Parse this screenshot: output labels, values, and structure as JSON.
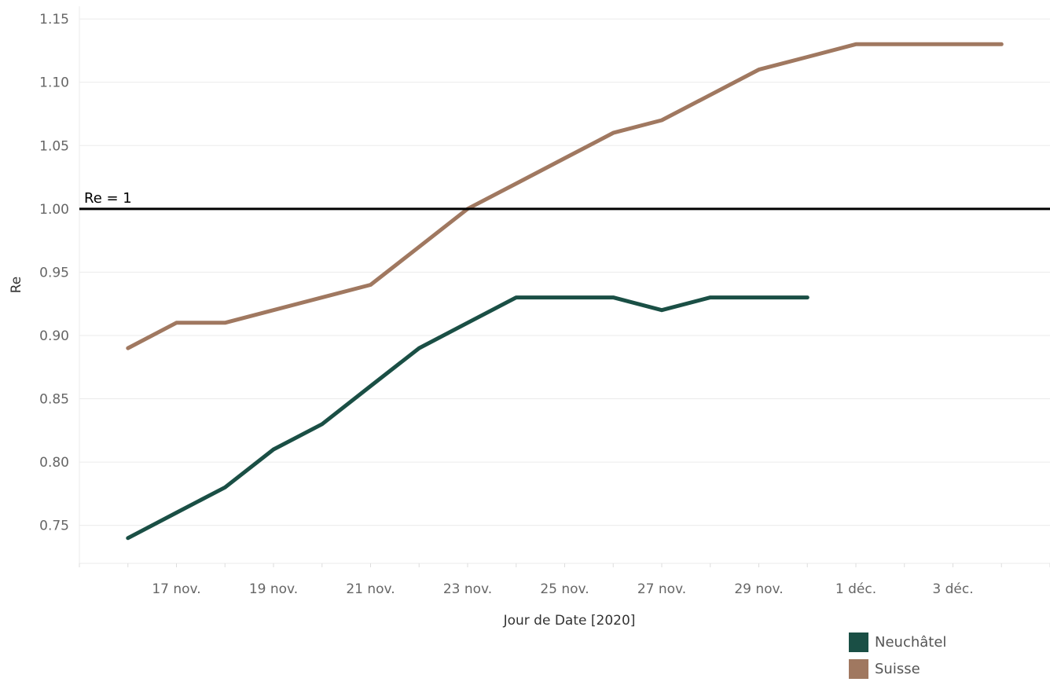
{
  "chart_data": {
    "type": "line",
    "xlabel": "Jour de Date [2020]",
    "ylabel": "Re",
    "ylim": [
      0.72,
      1.16
    ],
    "yticks": [
      0.75,
      0.8,
      0.85,
      0.9,
      0.95,
      1.0,
      1.05,
      1.1,
      1.15
    ],
    "ytick_labels": [
      "0.75",
      "0.80",
      "0.85",
      "0.90",
      "0.95",
      "1.00",
      "1.05",
      "1.10",
      "1.15"
    ],
    "x_range": [
      "2020-11-15",
      "2020-12-05"
    ],
    "xticks": [
      {
        "date": "2020-11-17",
        "label": "17 nov."
      },
      {
        "date": "2020-11-19",
        "label": "19 nov."
      },
      {
        "date": "2020-11-21",
        "label": "21 nov."
      },
      {
        "date": "2020-11-23",
        "label": "23 nov."
      },
      {
        "date": "2020-11-25",
        "label": "25 nov."
      },
      {
        "date": "2020-11-27",
        "label": "27 nov."
      },
      {
        "date": "2020-11-29",
        "label": "29 nov."
      },
      {
        "date": "2020-12-01",
        "label": "1 déc."
      },
      {
        "date": "2020-12-03",
        "label": "3 déc."
      }
    ],
    "reference_line": {
      "y": 1.0,
      "label": "Re = 1",
      "color": "#000000"
    },
    "legend_position": "bottom-right",
    "series": [
      {
        "name": "Neuchâtel",
        "color": "#1a4f45",
        "points": [
          {
            "date": "2020-11-16",
            "y": 0.74
          },
          {
            "date": "2020-11-17",
            "y": 0.76
          },
          {
            "date": "2020-11-18",
            "y": 0.78
          },
          {
            "date": "2020-11-19",
            "y": 0.81
          },
          {
            "date": "2020-11-20",
            "y": 0.83
          },
          {
            "date": "2020-11-21",
            "y": 0.86
          },
          {
            "date": "2020-11-22",
            "y": 0.89
          },
          {
            "date": "2020-11-23",
            "y": 0.91
          },
          {
            "date": "2020-11-24",
            "y": 0.93
          },
          {
            "date": "2020-11-25",
            "y": 0.93
          },
          {
            "date": "2020-11-26",
            "y": 0.93
          },
          {
            "date": "2020-11-27",
            "y": 0.92
          },
          {
            "date": "2020-11-28",
            "y": 0.93
          },
          {
            "date": "2020-11-29",
            "y": 0.93
          },
          {
            "date": "2020-11-30",
            "y": 0.93
          }
        ]
      },
      {
        "name": "Suisse",
        "color": "#a07860",
        "points": [
          {
            "date": "2020-11-16",
            "y": 0.89
          },
          {
            "date": "2020-11-17",
            "y": 0.91
          },
          {
            "date": "2020-11-18",
            "y": 0.91
          },
          {
            "date": "2020-11-19",
            "y": 0.92
          },
          {
            "date": "2020-11-20",
            "y": 0.93
          },
          {
            "date": "2020-11-21",
            "y": 0.94
          },
          {
            "date": "2020-11-22",
            "y": 0.97
          },
          {
            "date": "2020-11-23",
            "y": 1.0
          },
          {
            "date": "2020-11-24",
            "y": 1.02
          },
          {
            "date": "2020-11-25",
            "y": 1.04
          },
          {
            "date": "2020-11-26",
            "y": 1.06
          },
          {
            "date": "2020-11-27",
            "y": 1.07
          },
          {
            "date": "2020-11-28",
            "y": 1.09
          },
          {
            "date": "2020-11-29",
            "y": 1.11
          },
          {
            "date": "2020-11-30",
            "y": 1.12
          },
          {
            "date": "2020-12-01",
            "y": 1.13
          },
          {
            "date": "2020-12-02",
            "y": 1.13
          },
          {
            "date": "2020-12-03",
            "y": 1.13
          },
          {
            "date": "2020-12-04",
            "y": 1.13
          }
        ]
      }
    ]
  }
}
